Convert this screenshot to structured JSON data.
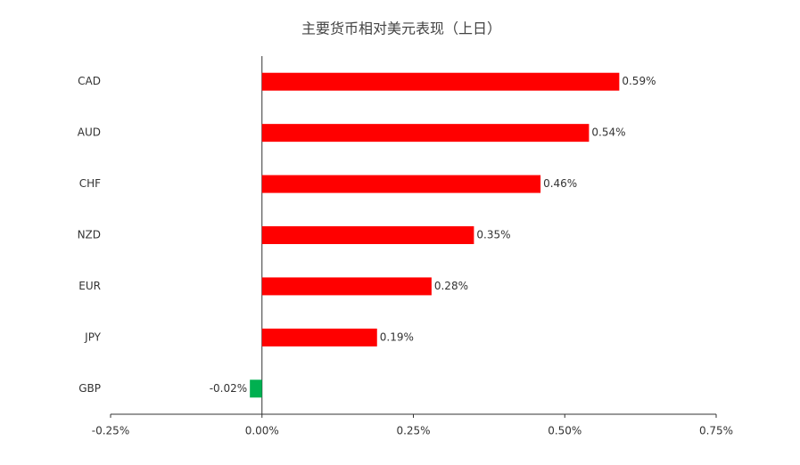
{
  "chart_data": {
    "type": "hbar",
    "title": "主要货币相对美元表现（上日）",
    "categories": [
      "CAD",
      "AUD",
      "CHF",
      "NZD",
      "EUR",
      "JPY",
      "GBP"
    ],
    "values": [
      0.59,
      0.54,
      0.46,
      0.35,
      0.28,
      0.19,
      -0.02
    ],
    "value_labels": [
      "0.59%",
      "0.54%",
      "0.46%",
      "0.35%",
      "0.28%",
      "0.19%",
      "-0.02%"
    ],
    "colors": [
      "#ff0000",
      "#ff0000",
      "#ff0000",
      "#ff0000",
      "#ff0000",
      "#ff0000",
      "#00b050"
    ],
    "xlim": [
      -0.25,
      0.75
    ],
    "xticks": [
      {
        "value": -0.25,
        "label": "-0.25%"
      },
      {
        "value": 0,
        "label": "0.00%"
      },
      {
        "value": 0.25,
        "label": "0.25%"
      },
      {
        "value": 0.5,
        "label": "0.50%"
      },
      {
        "value": 0.75,
        "label": "0.75%"
      }
    ],
    "grid": false
  }
}
